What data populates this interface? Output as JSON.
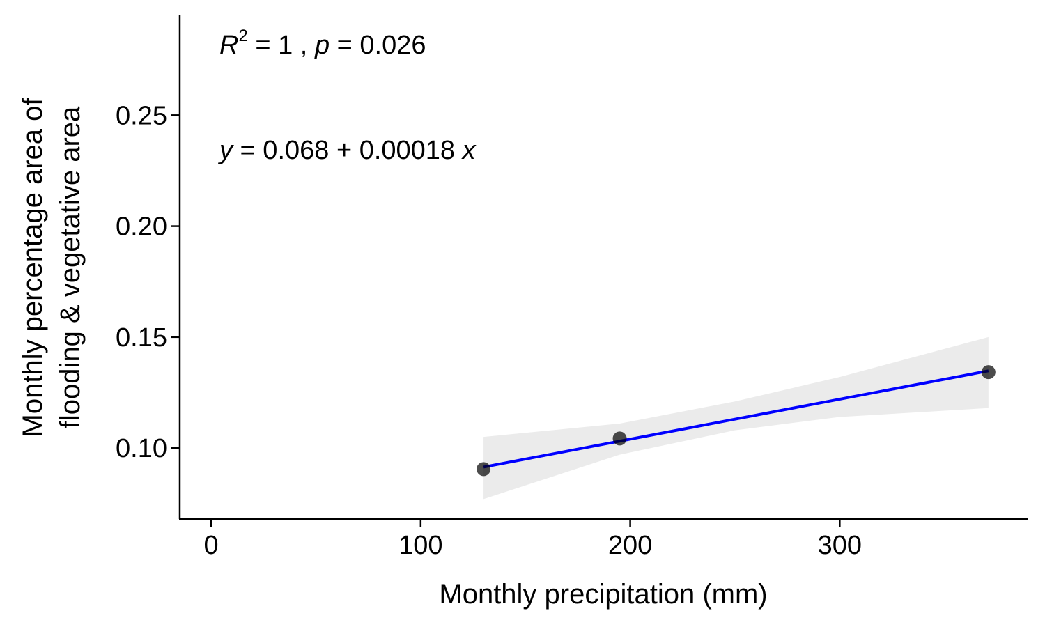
{
  "chart_data": {
    "type": "scatter",
    "title": "",
    "xlabel": "Monthly precipitation (mm)",
    "ylabel_lines": [
      "Monthly percentage area of",
      "flooding & vegetative area"
    ],
    "xlim": [
      -15,
      390
    ],
    "ylim": [
      0.068,
      0.295
    ],
    "xticks": [
      0,
      100,
      200,
      300
    ],
    "xtick_labels": [
      "0",
      "100",
      "200",
      "300"
    ],
    "yticks": [
      0.1,
      0.15,
      0.2,
      0.25
    ],
    "ytick_labels": [
      "0.10",
      "0.15",
      "0.20",
      "0.25"
    ],
    "grid": false,
    "legend": "none",
    "points": [
      {
        "x": 130,
        "y": 0.0905
      },
      {
        "x": 195,
        "y": 0.1043
      },
      {
        "x": 371,
        "y": 0.1342
      }
    ],
    "fit_line": {
      "intercept": 0.068,
      "slope": 0.00018,
      "x_range": [
        130,
        371
      ],
      "color": "#0000FF"
    },
    "confidence_band": {
      "color": "#EBEBEB",
      "lower": [
        [
          130,
          0.077
        ],
        [
          195,
          0.097
        ],
        [
          250,
          0.108
        ],
        [
          300,
          0.114
        ],
        [
          371,
          0.118
        ]
      ],
      "upper": [
        [
          130,
          0.105
        ],
        [
          195,
          0.111
        ],
        [
          250,
          0.121
        ],
        [
          300,
          0.132
        ],
        [
          371,
          0.15
        ]
      ]
    },
    "point_color": "#000000",
    "annotations": {
      "r2": {
        "R": "R",
        "sup": "2",
        "eq": " = 1 , ",
        "p": "p",
        "p_val": " = 0.026"
      },
      "equation": {
        "y": "y",
        "body": " = 0.068 + 0.00018 ",
        "x": "x"
      }
    }
  }
}
